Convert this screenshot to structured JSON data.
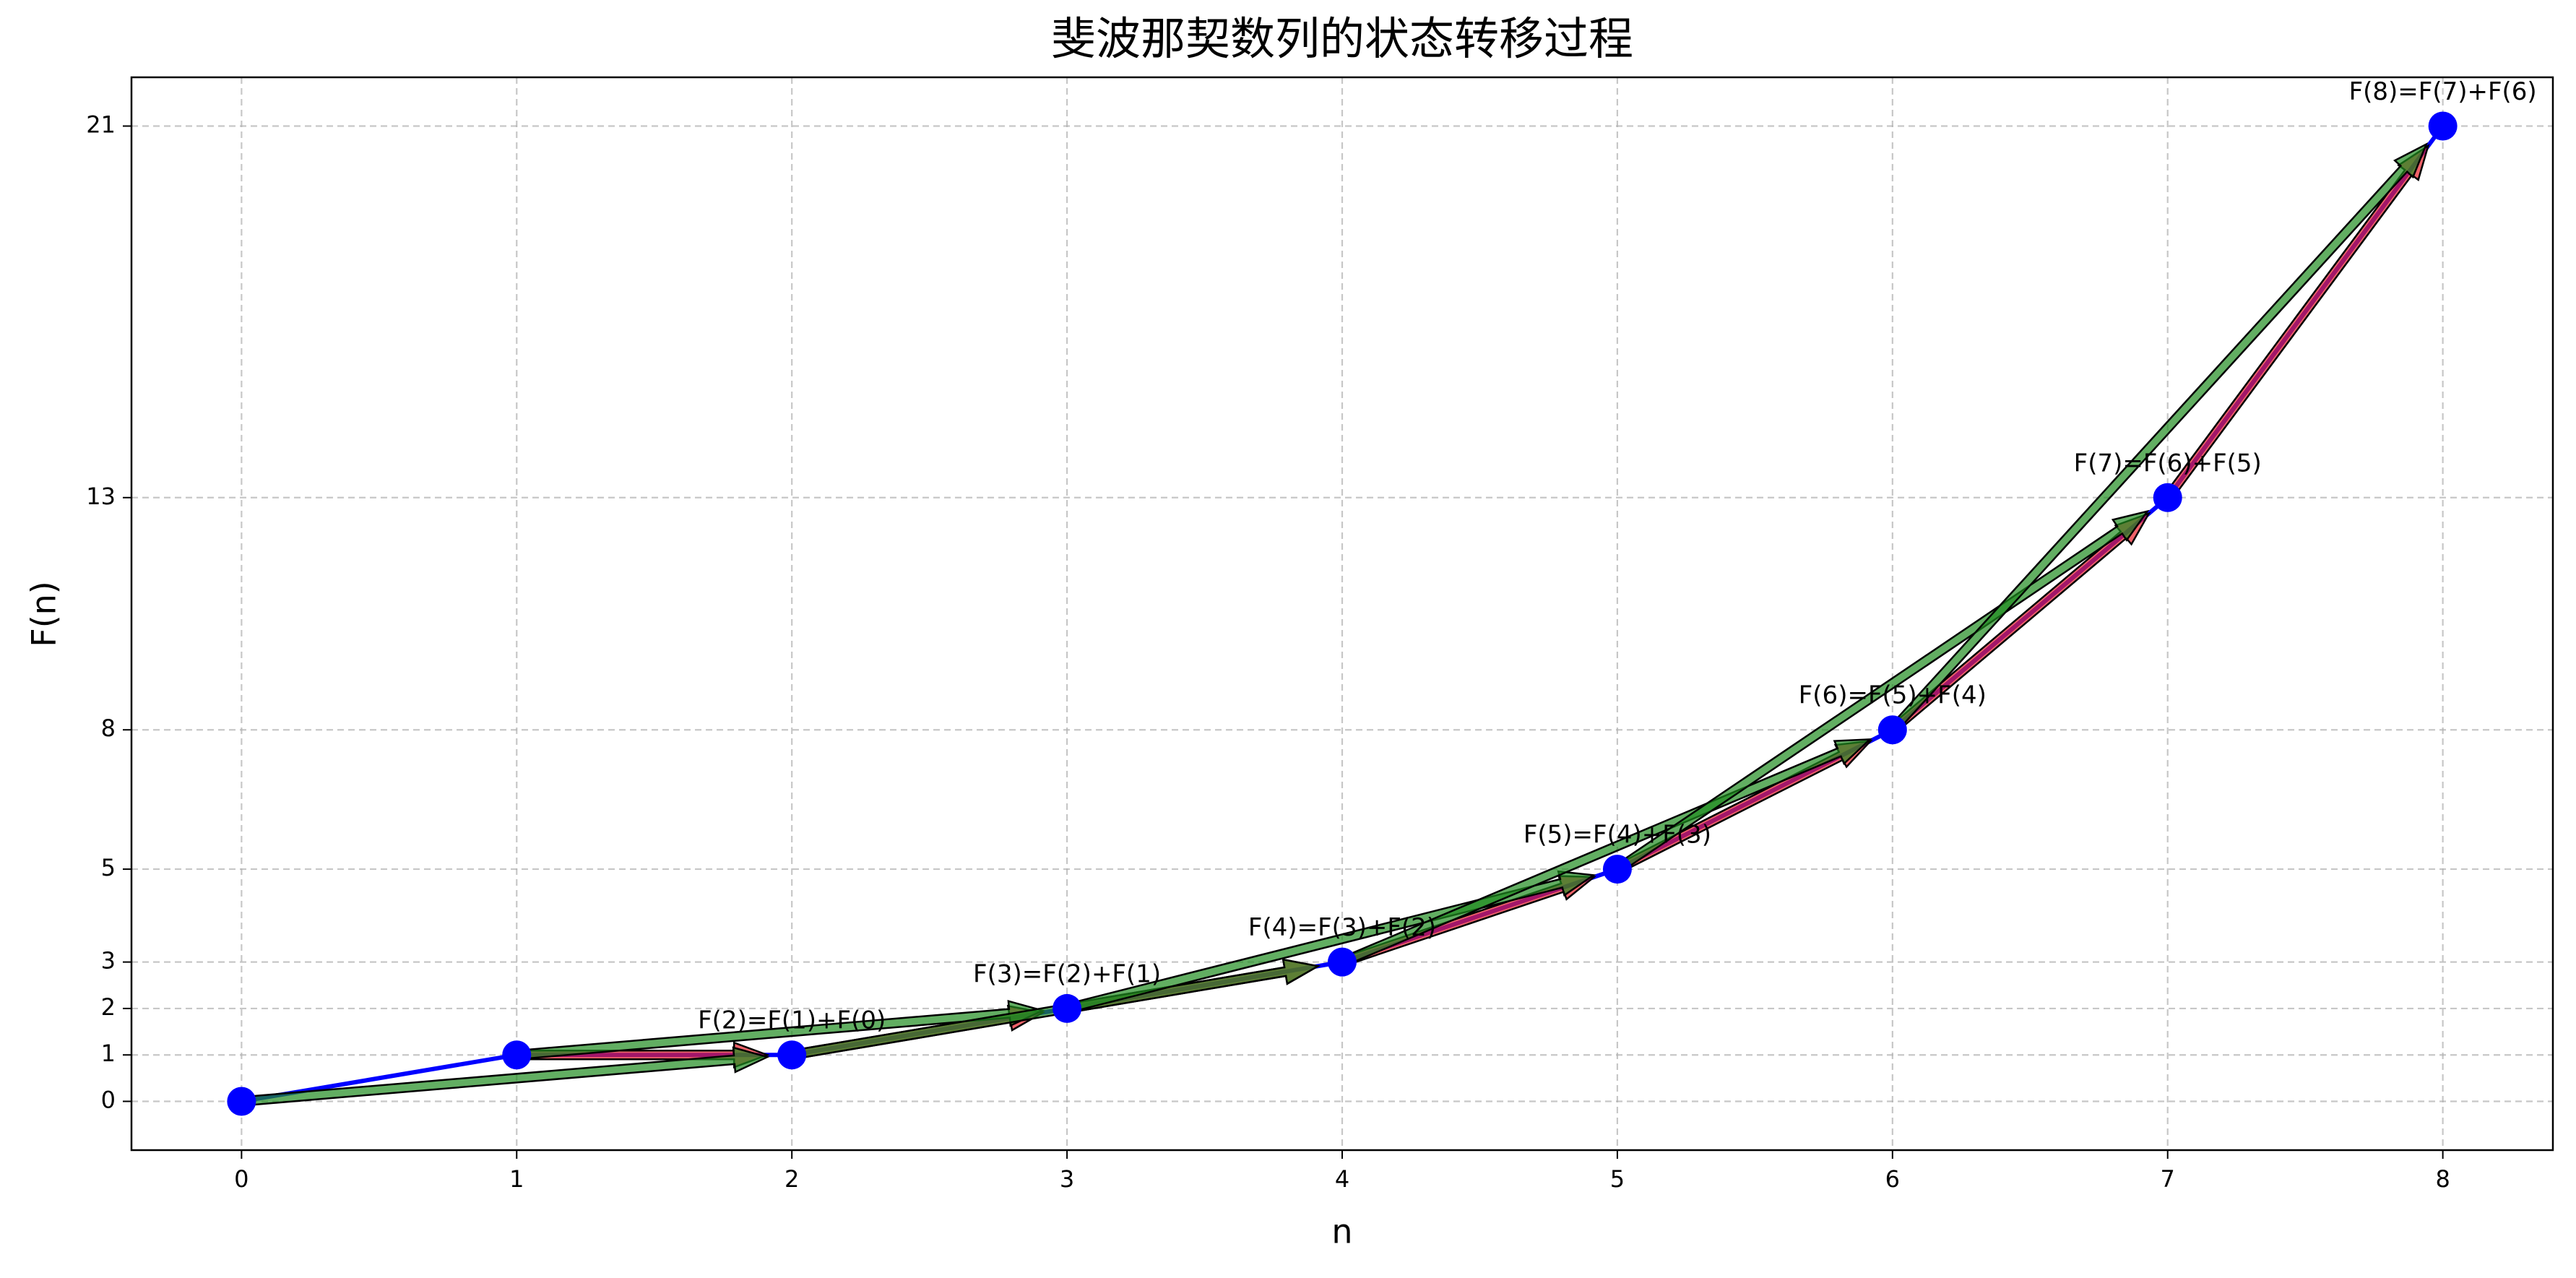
{
  "chart_data": {
    "type": "line",
    "title": "斐波那契数列的状态转移过程",
    "x_label": "n",
    "y_label": "F(n)",
    "x": [
      0,
      1,
      2,
      3,
      4,
      5,
      6,
      7,
      8
    ],
    "series": [
      {
        "color": "#0000ff",
        "values": [
          0,
          1,
          1,
          2,
          3,
          5,
          8,
          13,
          21
        ]
      }
    ],
    "annotations": [
      "F(2)=F(1)+F(0)",
      "F(3)=F(2)+F(1)",
      "F(4)=F(3)+F(2)",
      "F(5)=F(4)+F(3)",
      "F(6)=F(5)+F(4)",
      "F(7)=F(6)+F(5)",
      "F(8)=F(7)+F(6)"
    ],
    "arrow_colors": [
      "#e8202a",
      "#1f8c1f"
    ],
    "xlim": [
      -0.4,
      8.4
    ],
    "ylim": [
      -1.05,
      22.05
    ],
    "xticks": [
      0,
      1,
      2,
      3,
      4,
      5,
      6,
      7,
      8
    ],
    "yticks": [
      0,
      1,
      2,
      3,
      5,
      8,
      13,
      21
    ],
    "grid": true
  }
}
